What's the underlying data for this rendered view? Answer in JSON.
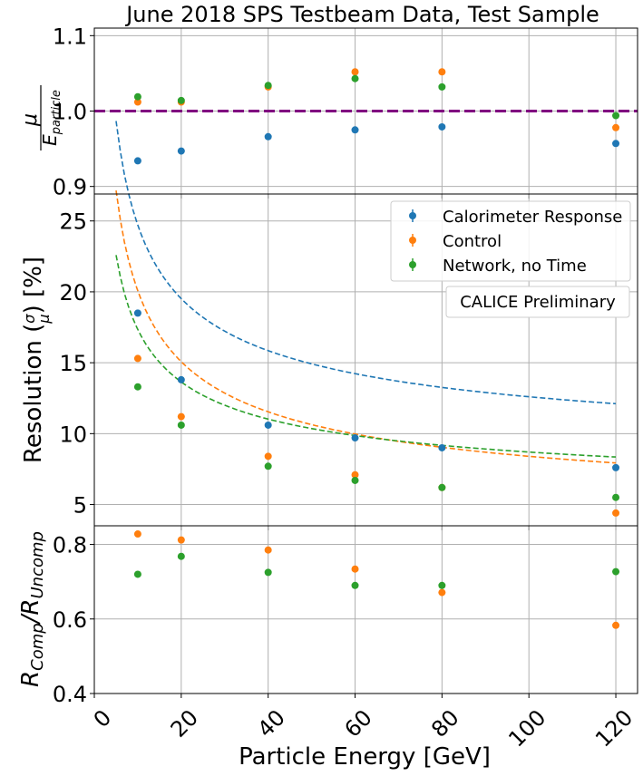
{
  "colors": {
    "calorimeter": "#1f77b4",
    "control": "#ff7f0e",
    "network": "#2ca02c",
    "reference_line": "#800080"
  },
  "chart_data": [
    {
      "panel": "top",
      "type": "scatter",
      "title": "June 2018 SPS Testbeam Data, Test Sample",
      "ylabel_num": "μ",
      "ylabel_den": "E",
      "ylabel_den_sub": "particle",
      "xlim": [
        0,
        125
      ],
      "ylim": [
        0.89,
        1.11
      ],
      "yticks": [
        0.9,
        1.0,
        1.1
      ],
      "yticklabels": [
        "0.9",
        "1.0",
        "1.1"
      ],
      "reference_line": 1.0,
      "series": [
        {
          "key": "calorimeter",
          "x": [
            10,
            20,
            40,
            60,
            80,
            120
          ],
          "y": [
            0.934,
            0.947,
            0.966,
            0.975,
            0.979,
            0.957
          ]
        },
        {
          "key": "control",
          "x": [
            10,
            20,
            40,
            60,
            80,
            120
          ],
          "y": [
            1.012,
            1.012,
            1.032,
            1.052,
            1.052,
            0.978
          ]
        },
        {
          "key": "network",
          "x": [
            10,
            20,
            40,
            60,
            80,
            120
          ],
          "y": [
            1.019,
            1.014,
            1.034,
            1.043,
            1.032,
            0.994
          ]
        }
      ]
    },
    {
      "panel": "middle",
      "type": "scatter",
      "ylabel": "Resolution",
      "ylabel_unit": "[%]",
      "ylabel_frac_num": "σ",
      "ylabel_frac_den": "μ",
      "xlim": [
        0,
        125
      ],
      "ylim": [
        3.5,
        26.9
      ],
      "yticks": [
        5,
        10,
        15,
        20,
        25
      ],
      "yticklabels": [
        "5",
        "10",
        "15",
        "20",
        "25"
      ],
      "annotation": "CALICE Preliminary",
      "legend_position": "top-right",
      "series": [
        {
          "key": "calorimeter",
          "name": "Calorimeter Response",
          "x": [
            10,
            20,
            40,
            60,
            80,
            120
          ],
          "y": [
            18.5,
            13.8,
            10.6,
            9.7,
            9.0,
            7.6
          ],
          "fit": {
            "a": 56.0,
            "c": 7.0,
            "x_range": [
              5,
              120
            ]
          }
        },
        {
          "key": "control",
          "name": "Control",
          "x": [
            10,
            20,
            40,
            60,
            80,
            120
          ],
          "y": [
            15.3,
            11.2,
            8.4,
            7.1,
            6.2,
            4.4
          ],
          "fit": {
            "a": 54.0,
            "c": 3.0,
            "x_range": [
              5,
              120
            ]
          }
        },
        {
          "key": "network",
          "name": "Network, no Time",
          "x": [
            10,
            20,
            40,
            60,
            80,
            120
          ],
          "y": [
            13.3,
            10.6,
            7.7,
            6.7,
            6.2,
            5.5
          ],
          "fit": {
            "a": 40.0,
            "c": 4.7,
            "x_range": [
              5,
              120
            ]
          }
        }
      ]
    },
    {
      "panel": "bottom",
      "type": "scatter",
      "ylabel": "R",
      "ylabel_sub1": "Comp",
      "ylabel_sub2": "Uncomp",
      "xlabel": "Particle Energy [GeV]",
      "xlim": [
        0,
        125
      ],
      "ylim": [
        0.4,
        0.85
      ],
      "xticks": [
        0,
        20,
        40,
        60,
        80,
        100,
        120
      ],
      "xticklabels": [
        "0",
        "20",
        "40",
        "60",
        "80",
        "100",
        "120"
      ],
      "yticks": [
        0.4,
        0.6,
        0.8
      ],
      "yticklabels": [
        "0.4",
        "0.6",
        "0.8"
      ],
      "series": [
        {
          "key": "control",
          "x": [
            10,
            20,
            40,
            60,
            80,
            120
          ],
          "y": [
            0.828,
            0.812,
            0.785,
            0.734,
            0.671,
            0.583
          ]
        },
        {
          "key": "network",
          "x": [
            10,
            20,
            40,
            60,
            80,
            120
          ],
          "y": [
            0.72,
            0.768,
            0.725,
            0.69,
            0.69,
            0.727
          ]
        }
      ]
    }
  ]
}
